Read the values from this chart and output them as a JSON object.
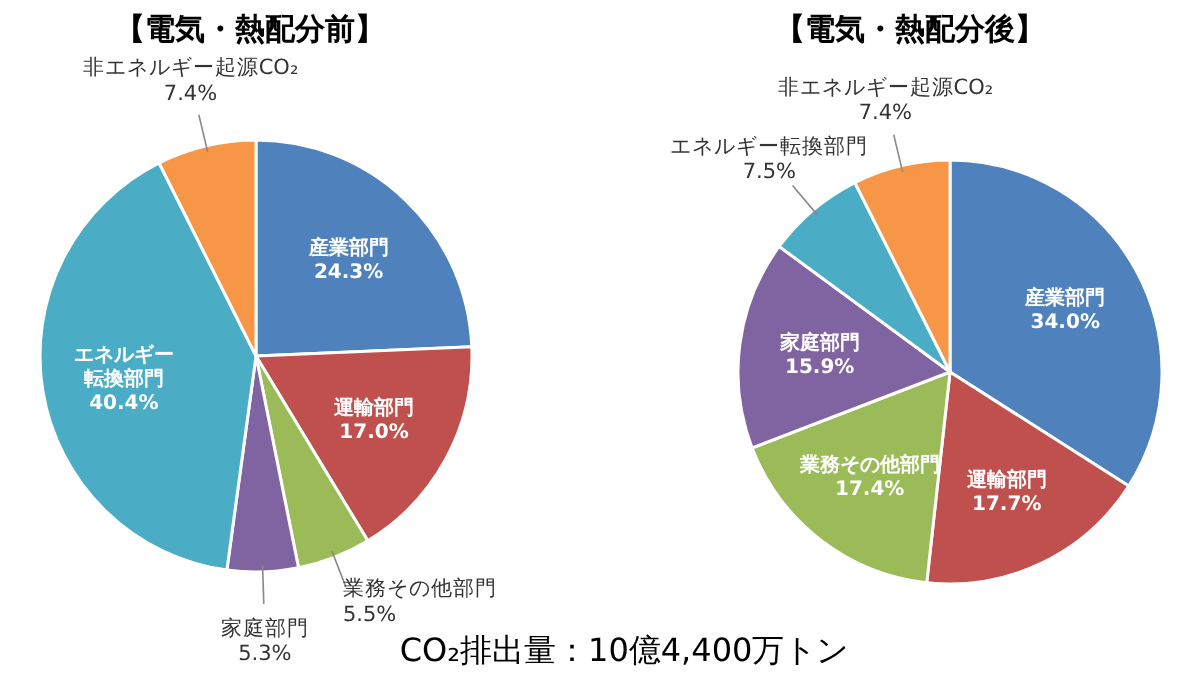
{
  "chart_data": [
    {
      "type": "pie",
      "title": "【電気・熱配分前】",
      "categories": [
        "産業部門",
        "運輸部門",
        "業務その他部門",
        "家庭部門",
        "エネルギー転換部門",
        "非エネルギー起源CO₂"
      ],
      "values": [
        24.3,
        17.0,
        5.5,
        5.3,
        40.4,
        7.4
      ],
      "value_labels": [
        "24.3%",
        "17.0%",
        "5.5%",
        "5.3%",
        "40.4%",
        "7.4%"
      ],
      "colors": [
        "#4f81bd",
        "#c0504d",
        "#9bbb59",
        "#8064a2",
        "#4bacc6",
        "#f79646"
      ]
    },
    {
      "type": "pie",
      "title": "【電気・熱配分後】",
      "categories": [
        "産業部門",
        "運輸部門",
        "業務その他部門",
        "家庭部門",
        "エネルギー転換部門",
        "非エネルギー起源CO₂"
      ],
      "values": [
        34.0,
        17.7,
        17.4,
        15.9,
        7.5,
        7.4
      ],
      "value_labels": [
        "34.0%",
        "17.7%",
        "17.4%",
        "15.9%",
        "7.5%",
        "7.4%"
      ],
      "colors": [
        "#4f81bd",
        "#c0504d",
        "#9bbb59",
        "#8064a2",
        "#4bacc6",
        "#f79646"
      ],
      "annotations": [
        "CO₂排出量：10億4,400万トン"
      ]
    }
  ]
}
